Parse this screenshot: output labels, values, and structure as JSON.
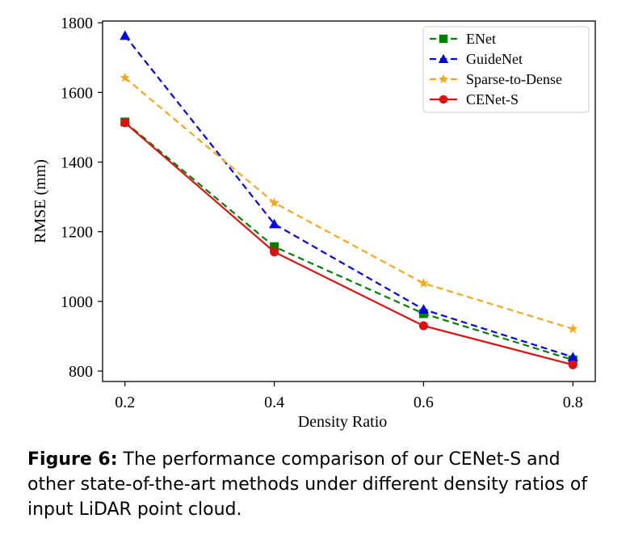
{
  "chart_data": {
    "type": "line",
    "title": "",
    "xlabel": "Density Ratio",
    "ylabel": "RMSE (mm)",
    "x": [
      0.2,
      0.4,
      0.6,
      0.8
    ],
    "x_ticks": [
      "0.2",
      "0.4",
      "0.6",
      "0.8"
    ],
    "y_ticks": [
      "800",
      "1000",
      "1200",
      "1400",
      "1600",
      "1800"
    ],
    "xlim": [
      0.17,
      0.83
    ],
    "ylim": [
      770,
      1805
    ],
    "grid": false,
    "legend_position": "top-right",
    "series": [
      {
        "name": "ENet",
        "values": [
          1515,
          1157,
          965,
          832
        ],
        "color": "#008000",
        "dash": "dashed",
        "marker": "square"
      },
      {
        "name": "GuideNet",
        "values": [
          1763,
          1222,
          977,
          840
        ],
        "color": "#0000ee",
        "dash": "dashed",
        "marker": "triangle"
      },
      {
        "name": "Sparse-to-Dense",
        "values": [
          1642,
          1283,
          1052,
          921
        ],
        "color": "#f4a91c",
        "dash": "dashed",
        "marker": "star"
      },
      {
        "name": "CENet-S",
        "values": [
          1513,
          1142,
          930,
          818
        ],
        "color": "#e01010",
        "dash": "solid",
        "marker": "circle"
      }
    ]
  },
  "caption": {
    "label": "Figure 6:",
    "text": " The performance comparison of our CENet-S and other state-of-the-art methods under different density ratios of input LiDAR point cloud."
  }
}
